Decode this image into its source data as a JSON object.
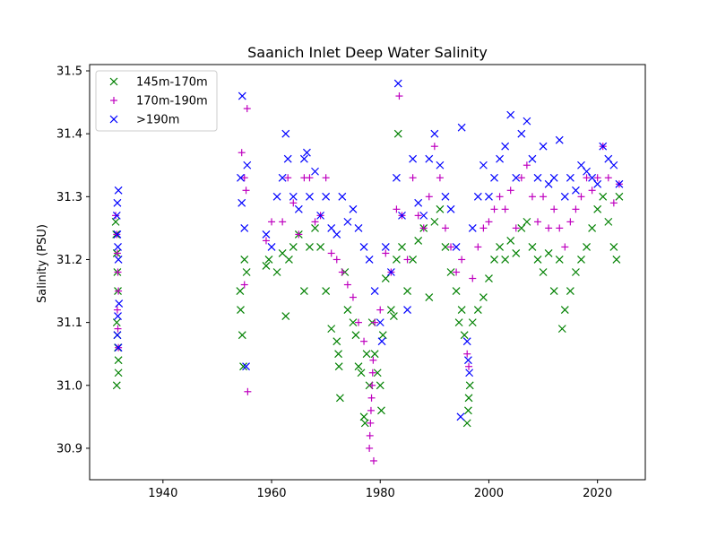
{
  "chart_data": {
    "type": "scatter",
    "title": "Saanich Inlet Deep Water Salinity",
    "xlabel": "",
    "ylabel": "Salinity (PSU)",
    "xlim": [
      1926.5,
      2028.8
    ],
    "ylim": [
      30.85,
      31.51
    ],
    "x_ticks": [
      1940,
      1960,
      1980,
      2000,
      2020
    ],
    "y_ticks": [
      30.9,
      31.0,
      31.1,
      31.2,
      31.3,
      31.4,
      31.5
    ],
    "x_tick_labels": [
      "1940",
      "1960",
      "1980",
      "2000",
      "2020"
    ],
    "y_tick_labels": [
      "30.9",
      "31.0",
      "31.1",
      "31.2",
      "31.3",
      "31.4",
      "31.5"
    ],
    "grid": false,
    "legend_position": "upper-left",
    "series": [
      {
        "name": "145m-170m",
        "marker": "x",
        "color": "#008000",
        "points": [
          [
            1931.3,
            31.26
          ],
          [
            1931.4,
            31.24
          ],
          [
            1931.5,
            31.21
          ],
          [
            1931.6,
            31.18
          ],
          [
            1931.7,
            31.15
          ],
          [
            1931.5,
            31.1
          ],
          [
            1931.6,
            31.08
          ],
          [
            1931.7,
            31.06
          ],
          [
            1931.8,
            31.04
          ],
          [
            1931.8,
            31.02
          ],
          [
            1931.5,
            31.0
          ],
          [
            1954.2,
            31.15
          ],
          [
            1954.3,
            31.12
          ],
          [
            1954.6,
            31.08
          ],
          [
            1954.8,
            31.03
          ],
          [
            1955.0,
            31.2
          ],
          [
            1955.4,
            31.18
          ],
          [
            1959.0,
            31.19
          ],
          [
            1959.5,
            31.2
          ],
          [
            1961.0,
            31.18
          ],
          [
            1962.0,
            31.21
          ],
          [
            1962.6,
            31.11
          ],
          [
            1963.2,
            31.2
          ],
          [
            1964.0,
            31.22
          ],
          [
            1965.0,
            31.24
          ],
          [
            1966.0,
            31.15
          ],
          [
            1967.0,
            31.22
          ],
          [
            1968.0,
            31.25
          ],
          [
            1969.0,
            31.22
          ],
          [
            1970.0,
            31.15
          ],
          [
            1971.0,
            31.09
          ],
          [
            1972.0,
            31.07
          ],
          [
            1972.3,
            31.05
          ],
          [
            1972.4,
            31.03
          ],
          [
            1972.6,
            30.98
          ],
          [
            1973.5,
            31.18
          ],
          [
            1974.0,
            31.12
          ],
          [
            1975.0,
            31.1
          ],
          [
            1975.5,
            31.08
          ],
          [
            1976.0,
            31.03
          ],
          [
            1976.5,
            31.02
          ],
          [
            1977.0,
            30.95
          ],
          [
            1977.2,
            30.94
          ],
          [
            1977.5,
            31.05
          ],
          [
            1978.0,
            31.0
          ],
          [
            1978.5,
            31.1
          ],
          [
            1979.0,
            31.05
          ],
          [
            1979.5,
            31.02
          ],
          [
            1980.0,
            31.0
          ],
          [
            1980.2,
            30.96
          ],
          [
            1980.5,
            31.08
          ],
          [
            1981.0,
            31.17
          ],
          [
            1982.0,
            31.12
          ],
          [
            1982.5,
            31.11
          ],
          [
            1983.0,
            31.2
          ],
          [
            1983.3,
            31.4
          ],
          [
            1984.0,
            31.22
          ],
          [
            1985.0,
            31.15
          ],
          [
            1986.0,
            31.2
          ],
          [
            1987.0,
            31.23
          ],
          [
            1988.0,
            31.25
          ],
          [
            1989.0,
            31.14
          ],
          [
            1990.0,
            31.26
          ],
          [
            1991.0,
            31.28
          ],
          [
            1992.0,
            31.22
          ],
          [
            1993.0,
            31.18
          ],
          [
            1994.0,
            31.15
          ],
          [
            1994.5,
            31.1
          ],
          [
            1995.0,
            31.12
          ],
          [
            1995.5,
            31.08
          ],
          [
            1996.0,
            30.94
          ],
          [
            1996.2,
            30.96
          ],
          [
            1996.3,
            30.98
          ],
          [
            1996.5,
            31.0
          ],
          [
            1997.0,
            31.1
          ],
          [
            1998.0,
            31.12
          ],
          [
            1999.0,
            31.14
          ],
          [
            2000.0,
            31.17
          ],
          [
            2001.0,
            31.2
          ],
          [
            2002.0,
            31.22
          ],
          [
            2003.0,
            31.2
          ],
          [
            2004.0,
            31.23
          ],
          [
            2005.0,
            31.21
          ],
          [
            2006.0,
            31.25
          ],
          [
            2007.0,
            31.26
          ],
          [
            2008.0,
            31.22
          ],
          [
            2009.0,
            31.2
          ],
          [
            2010.0,
            31.18
          ],
          [
            2011.0,
            31.21
          ],
          [
            2012.0,
            31.15
          ],
          [
            2013.0,
            31.2
          ],
          [
            2013.5,
            31.09
          ],
          [
            2014.0,
            31.12
          ],
          [
            2015.0,
            31.15
          ],
          [
            2016.0,
            31.18
          ],
          [
            2017.0,
            31.2
          ],
          [
            2018.0,
            31.22
          ],
          [
            2019.0,
            31.25
          ],
          [
            2020.0,
            31.28
          ],
          [
            2021.0,
            31.3
          ],
          [
            2022.0,
            31.26
          ],
          [
            2023.0,
            31.22
          ],
          [
            2023.5,
            31.2
          ],
          [
            2024.0,
            31.3
          ]
        ]
      },
      {
        "name": "170m-190m",
        "marker": "+",
        "color": "#bf00bf",
        "points": [
          [
            1931.3,
            31.27
          ],
          [
            1931.5,
            31.24
          ],
          [
            1931.6,
            31.21
          ],
          [
            1931.7,
            31.18
          ],
          [
            1931.8,
            31.15
          ],
          [
            1931.6,
            31.12
          ],
          [
            1931.7,
            31.09
          ],
          [
            1931.8,
            31.06
          ],
          [
            1954.5,
            31.37
          ],
          [
            1955.0,
            31.33
          ],
          [
            1955.3,
            31.31
          ],
          [
            1955.5,
            31.44
          ],
          [
            1955.6,
            30.99
          ],
          [
            1955.0,
            31.16
          ],
          [
            1959.0,
            31.23
          ],
          [
            1960.0,
            31.26
          ],
          [
            1962.0,
            31.26
          ],
          [
            1963.0,
            31.33
          ],
          [
            1964.0,
            31.29
          ],
          [
            1965.0,
            31.24
          ],
          [
            1966.0,
            31.33
          ],
          [
            1967.0,
            31.33
          ],
          [
            1968.0,
            31.26
          ],
          [
            1969.0,
            31.27
          ],
          [
            1970.0,
            31.33
          ],
          [
            1971.0,
            31.21
          ],
          [
            1972.0,
            31.2
          ],
          [
            1973.0,
            31.18
          ],
          [
            1974.0,
            31.16
          ],
          [
            1975.0,
            31.14
          ],
          [
            1976.0,
            31.1
          ],
          [
            1977.0,
            31.07
          ],
          [
            1978.0,
            30.9
          ],
          [
            1978.1,
            30.92
          ],
          [
            1978.2,
            30.94
          ],
          [
            1978.3,
            30.96
          ],
          [
            1978.4,
            30.98
          ],
          [
            1978.5,
            31.0
          ],
          [
            1978.6,
            31.02
          ],
          [
            1978.7,
            31.04
          ],
          [
            1978.8,
            30.88
          ],
          [
            1979.0,
            31.1
          ],
          [
            1980.0,
            31.12
          ],
          [
            1981.0,
            31.21
          ],
          [
            1982.0,
            31.18
          ],
          [
            1983.0,
            31.28
          ],
          [
            1983.5,
            31.46
          ],
          [
            1984.0,
            31.27
          ],
          [
            1985.0,
            31.2
          ],
          [
            1986.0,
            31.33
          ],
          [
            1987.0,
            31.27
          ],
          [
            1988.0,
            31.25
          ],
          [
            1989.0,
            31.3
          ],
          [
            1990.0,
            31.38
          ],
          [
            1991.0,
            31.33
          ],
          [
            1992.0,
            31.25
          ],
          [
            1993.0,
            31.22
          ],
          [
            1994.0,
            31.18
          ],
          [
            1995.0,
            31.2
          ],
          [
            1996.0,
            31.05
          ],
          [
            1996.3,
            31.03
          ],
          [
            1997.0,
            31.17
          ],
          [
            1998.0,
            31.22
          ],
          [
            1999.0,
            31.25
          ],
          [
            2000.0,
            31.26
          ],
          [
            2001.0,
            31.28
          ],
          [
            2002.0,
            31.3
          ],
          [
            2003.0,
            31.28
          ],
          [
            2004.0,
            31.31
          ],
          [
            2005.0,
            31.25
          ],
          [
            2006.0,
            31.33
          ],
          [
            2007.0,
            31.35
          ],
          [
            2008.0,
            31.3
          ],
          [
            2009.0,
            31.26
          ],
          [
            2010.0,
            31.3
          ],
          [
            2011.0,
            31.25
          ],
          [
            2012.0,
            31.28
          ],
          [
            2013.0,
            31.25
          ],
          [
            2014.0,
            31.22
          ],
          [
            2015.0,
            31.26
          ],
          [
            2016.0,
            31.28
          ],
          [
            2017.0,
            31.3
          ],
          [
            2018.0,
            31.33
          ],
          [
            2019.0,
            31.31
          ],
          [
            2020.0,
            31.33
          ],
          [
            2021.0,
            31.38
          ],
          [
            2022.0,
            31.33
          ],
          [
            2023.0,
            31.29
          ],
          [
            2024.0,
            31.32
          ]
        ]
      },
      {
        "name": ">190m",
        "marker": "x",
        "color": "#0000ff",
        "points": [
          [
            1931.8,
            31.31
          ],
          [
            1931.6,
            31.29
          ],
          [
            1931.5,
            31.27
          ],
          [
            1931.6,
            31.24
          ],
          [
            1931.7,
            31.22
          ],
          [
            1931.8,
            31.2
          ],
          [
            1931.9,
            31.13
          ],
          [
            1931.7,
            31.11
          ],
          [
            1931.6,
            31.08
          ],
          [
            1931.8,
            31.06
          ],
          [
            1954.6,
            31.46
          ],
          [
            1954.3,
            31.33
          ],
          [
            1954.5,
            31.29
          ],
          [
            1955.5,
            31.35
          ],
          [
            1955.3,
            31.03
          ],
          [
            1955.0,
            31.25
          ],
          [
            1959.0,
            31.24
          ],
          [
            1960.0,
            31.22
          ],
          [
            1961.0,
            31.3
          ],
          [
            1962.0,
            31.33
          ],
          [
            1962.6,
            31.4
          ],
          [
            1963.0,
            31.36
          ],
          [
            1964.0,
            31.3
          ],
          [
            1965.0,
            31.28
          ],
          [
            1966.0,
            31.36
          ],
          [
            1966.5,
            31.37
          ],
          [
            1967.0,
            31.3
          ],
          [
            1968.0,
            31.34
          ],
          [
            1969.0,
            31.27
          ],
          [
            1970.0,
            31.3
          ],
          [
            1971.0,
            31.25
          ],
          [
            1972.0,
            31.24
          ],
          [
            1973.0,
            31.3
          ],
          [
            1974.0,
            31.26
          ],
          [
            1975.0,
            31.28
          ],
          [
            1976.0,
            31.25
          ],
          [
            1977.0,
            31.22
          ],
          [
            1978.0,
            31.2
          ],
          [
            1979.0,
            31.15
          ],
          [
            1980.0,
            31.1
          ],
          [
            1980.3,
            31.07
          ],
          [
            1981.0,
            31.22
          ],
          [
            1982.0,
            31.18
          ],
          [
            1983.0,
            31.33
          ],
          [
            1983.3,
            31.48
          ],
          [
            1984.0,
            31.27
          ],
          [
            1985.0,
            31.12
          ],
          [
            1986.0,
            31.36
          ],
          [
            1987.0,
            31.29
          ],
          [
            1988.0,
            31.27
          ],
          [
            1989.0,
            31.36
          ],
          [
            1990.0,
            31.4
          ],
          [
            1991.0,
            31.35
          ],
          [
            1992.0,
            31.3
          ],
          [
            1993.0,
            31.28
          ],
          [
            1994.0,
            31.22
          ],
          [
            1994.8,
            30.95
          ],
          [
            1995.0,
            31.41
          ],
          [
            1996.0,
            31.07
          ],
          [
            1996.2,
            31.04
          ],
          [
            1996.4,
            31.02
          ],
          [
            1997.0,
            31.25
          ],
          [
            1998.0,
            31.3
          ],
          [
            1999.0,
            31.35
          ],
          [
            2000.0,
            31.3
          ],
          [
            2001.0,
            31.33
          ],
          [
            2002.0,
            31.36
          ],
          [
            2003.0,
            31.38
          ],
          [
            2004.0,
            31.43
          ],
          [
            2005.0,
            31.33
          ],
          [
            2006.0,
            31.4
          ],
          [
            2007.0,
            31.42
          ],
          [
            2008.0,
            31.36
          ],
          [
            2009.0,
            31.33
          ],
          [
            2010.0,
            31.38
          ],
          [
            2011.0,
            31.32
          ],
          [
            2012.0,
            31.33
          ],
          [
            2013.0,
            31.39
          ],
          [
            2014.0,
            31.3
          ],
          [
            2015.0,
            31.33
          ],
          [
            2016.0,
            31.31
          ],
          [
            2017.0,
            31.35
          ],
          [
            2018.0,
            31.34
          ],
          [
            2019.0,
            31.33
          ],
          [
            2020.0,
            31.32
          ],
          [
            2021.0,
            31.38
          ],
          [
            2022.0,
            31.36
          ],
          [
            2023.0,
            31.35
          ],
          [
            2024.0,
            31.32
          ]
        ]
      }
    ]
  }
}
